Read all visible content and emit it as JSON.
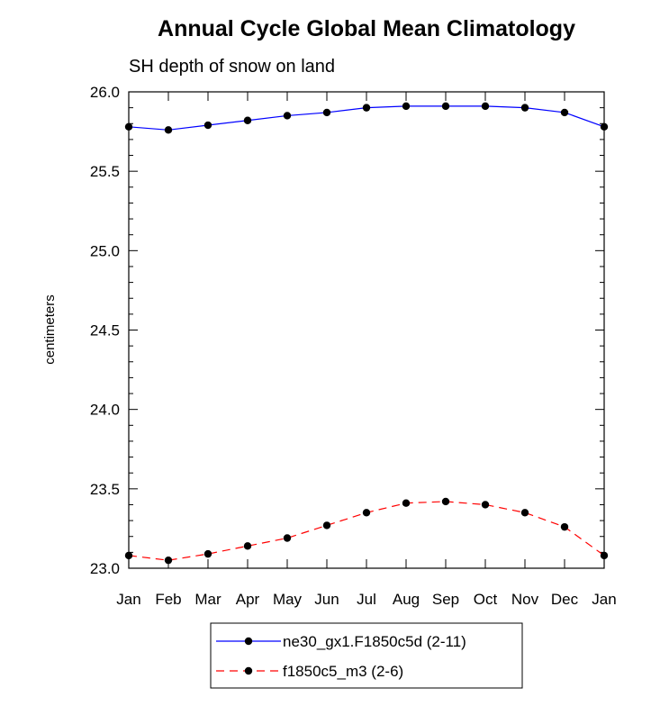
{
  "chart_data": {
    "type": "line",
    "title": "Annual Cycle Global Mean Climatology",
    "subtitle": "SH depth of snow on land",
    "xlabel": "",
    "ylabel": "centimeters",
    "categories": [
      "Jan",
      "Feb",
      "Mar",
      "Apr",
      "May",
      "Jun",
      "Jul",
      "Aug",
      "Sep",
      "Oct",
      "Nov",
      "Dec",
      "Jan"
    ],
    "ylim": [
      23.0,
      26.0
    ],
    "yticks": [
      "23.0",
      "23.5",
      "24.0",
      "24.5",
      "25.0",
      "25.5",
      "26.0"
    ],
    "grid": false,
    "legend_position": "bottom-center",
    "series": [
      {
        "name": "ne30_gx1.F1850c5d (2-11)",
        "color": "#0000ff",
        "dash": "solid",
        "marker": "filled-circle",
        "values": [
          25.78,
          25.76,
          25.79,
          25.82,
          25.85,
          25.87,
          25.9,
          25.91,
          25.91,
          25.91,
          25.9,
          25.87,
          25.78
        ]
      },
      {
        "name": "f1850c5_m3 (2-6)",
        "color": "#ff0000",
        "dash": "dashed",
        "marker": "filled-circle",
        "values": [
          23.08,
          23.05,
          23.09,
          23.14,
          23.19,
          23.27,
          23.35,
          23.41,
          23.42,
          23.4,
          23.35,
          23.26,
          23.08
        ]
      }
    ]
  }
}
